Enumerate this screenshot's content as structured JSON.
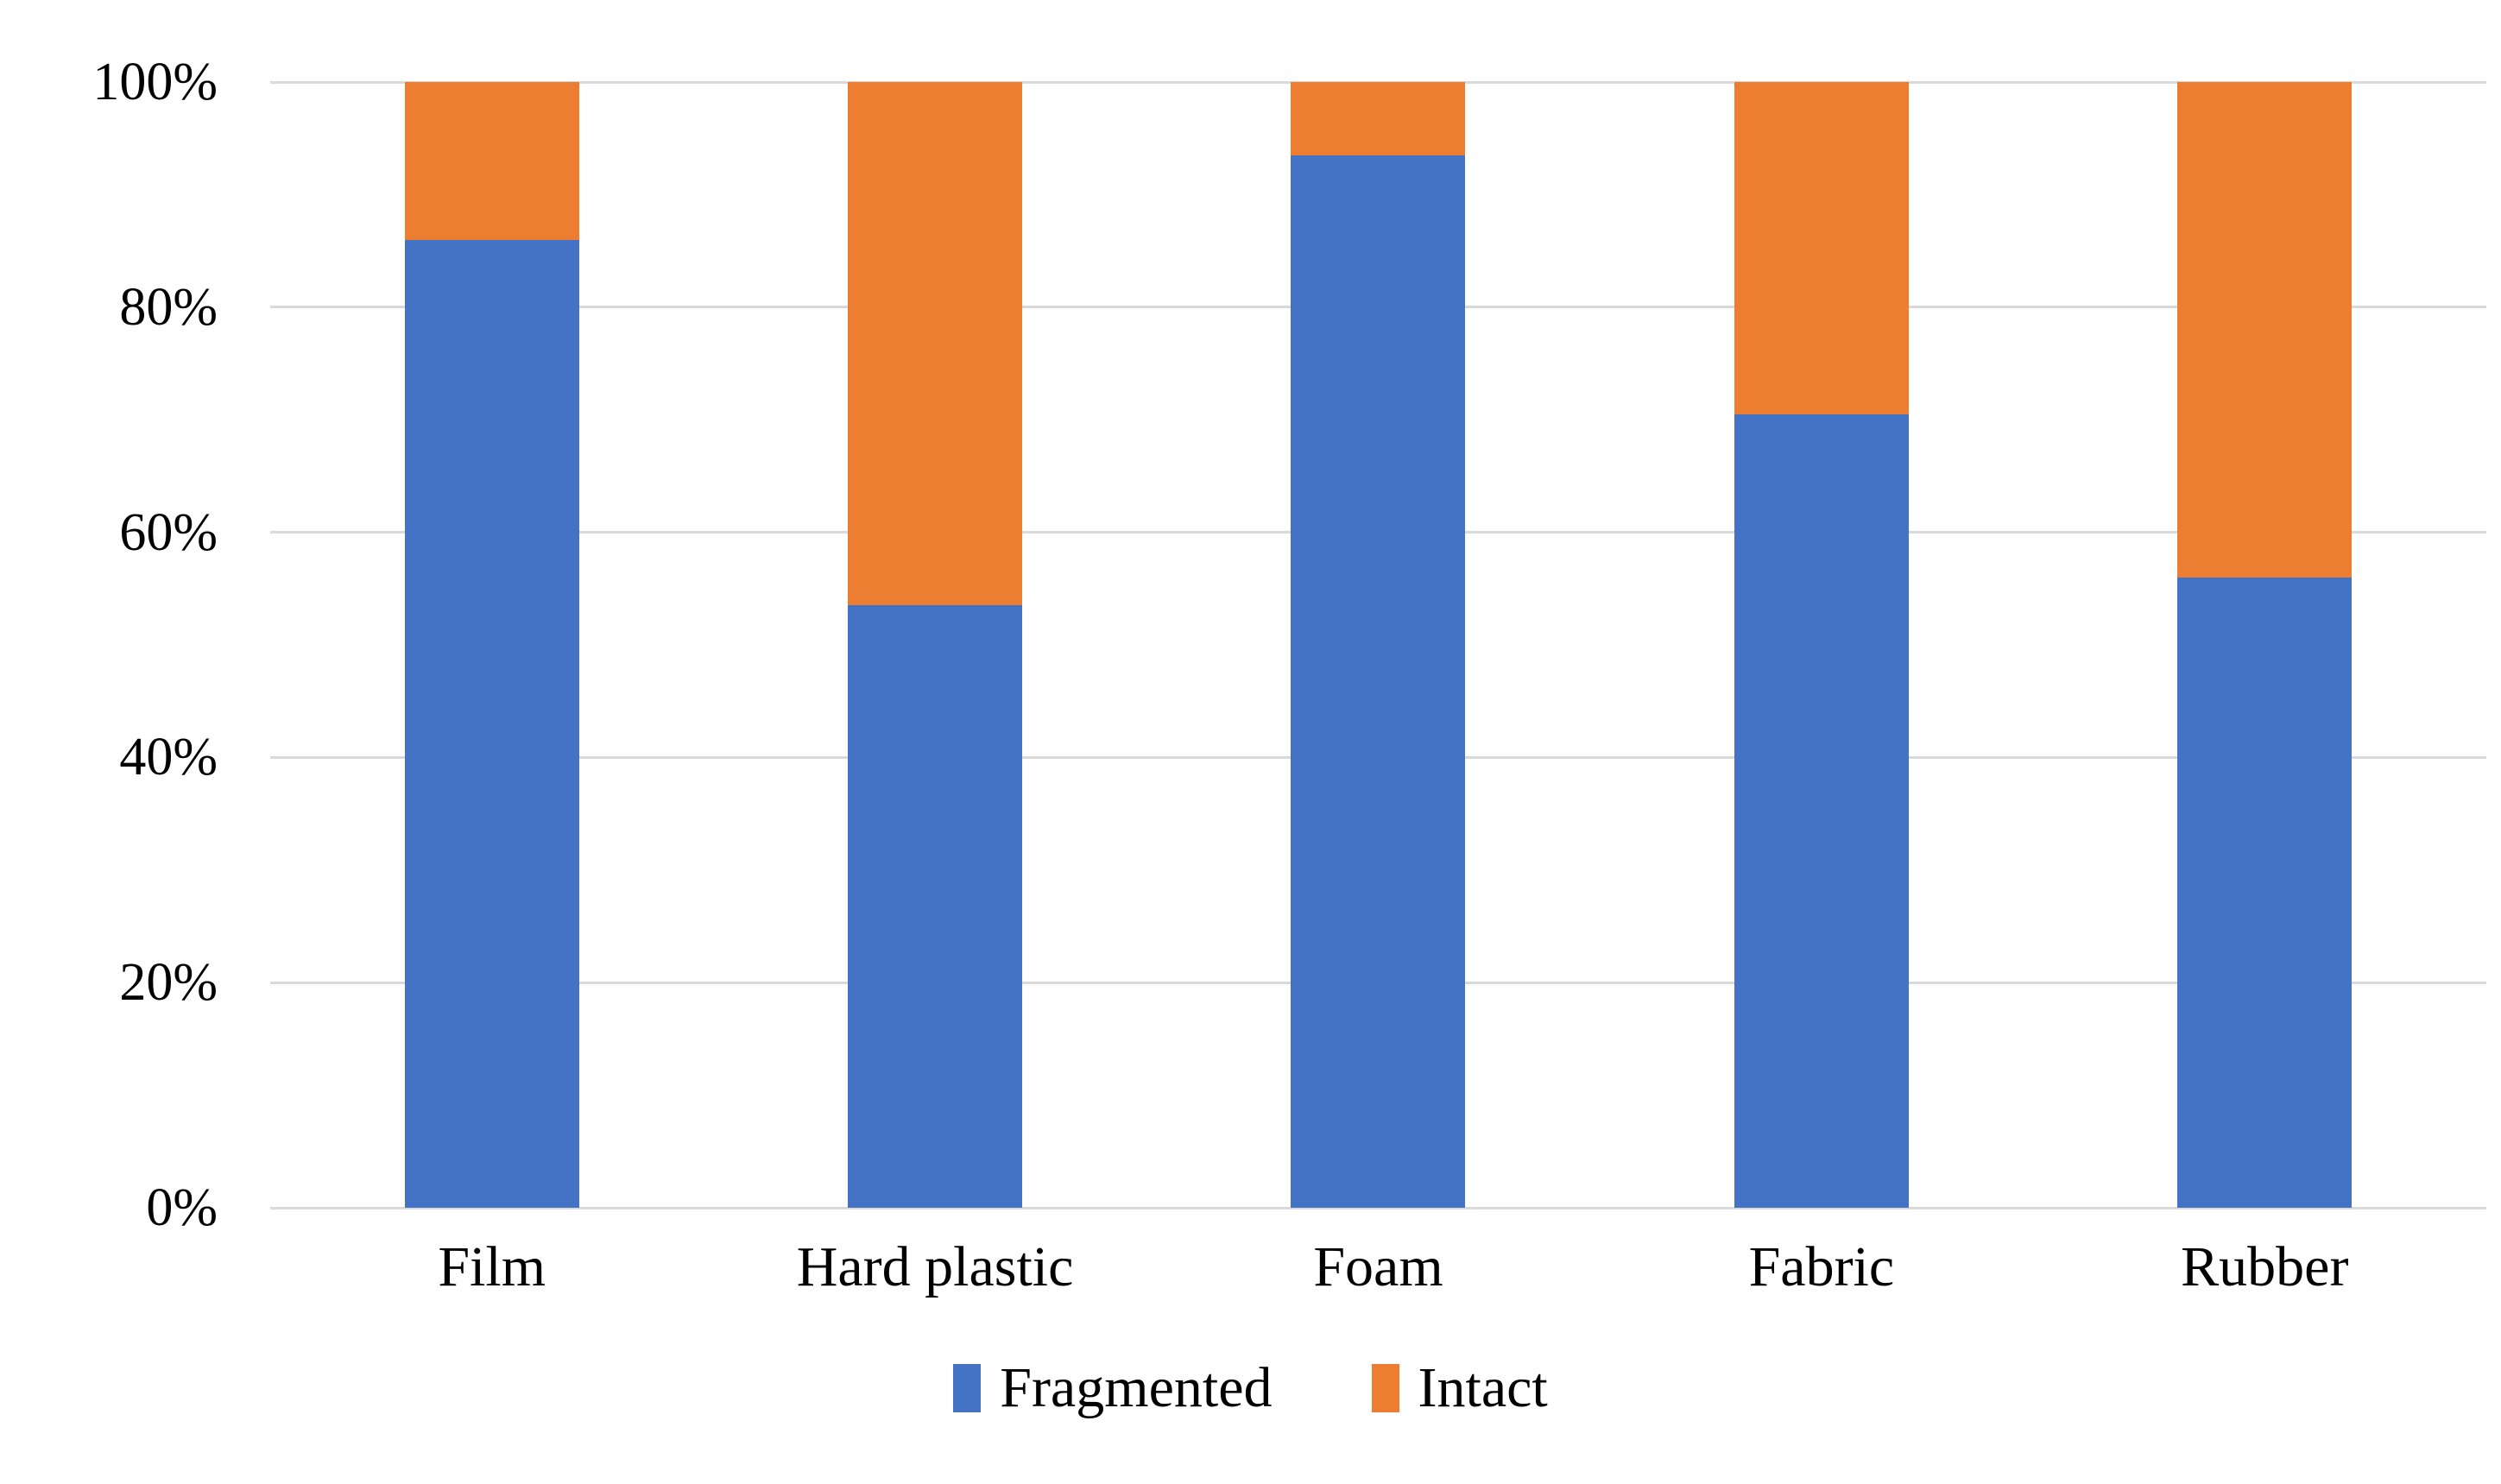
{
  "chart_data": {
    "type": "bar",
    "variant": "stacked-100-percent",
    "categories": [
      "Film",
      "Hard plastic",
      "Foam",
      "Fabric",
      "Rubber"
    ],
    "series": [
      {
        "name": "Fragmented",
        "color": "#4472C4",
        "values": [
          86,
          53.5,
          93.5,
          70.5,
          56
        ]
      },
      {
        "name": "Intact",
        "color": "#ED7D31",
        "values": [
          14,
          46.5,
          6.5,
          29.5,
          44
        ]
      }
    ],
    "title": "",
    "xlabel": "",
    "ylabel": "",
    "y_axis": {
      "min": 0,
      "max": 100,
      "unit": "%",
      "tick_labels": [
        "0%",
        "20%",
        "40%",
        "60%",
        "80%",
        "100%"
      ],
      "tick_values": [
        0,
        20,
        40,
        60,
        80,
        100
      ]
    },
    "grid": true,
    "gridline_color": "#D9D9D9",
    "legend_position": "bottom",
    "legend_items": [
      "Fragmented",
      "Intact"
    ]
  },
  "colors": {
    "fragmented": "#4472C4",
    "intact": "#ED7D31",
    "background": "#FFFFFF",
    "text": "#000000",
    "gridline": "#D9D9D9"
  }
}
